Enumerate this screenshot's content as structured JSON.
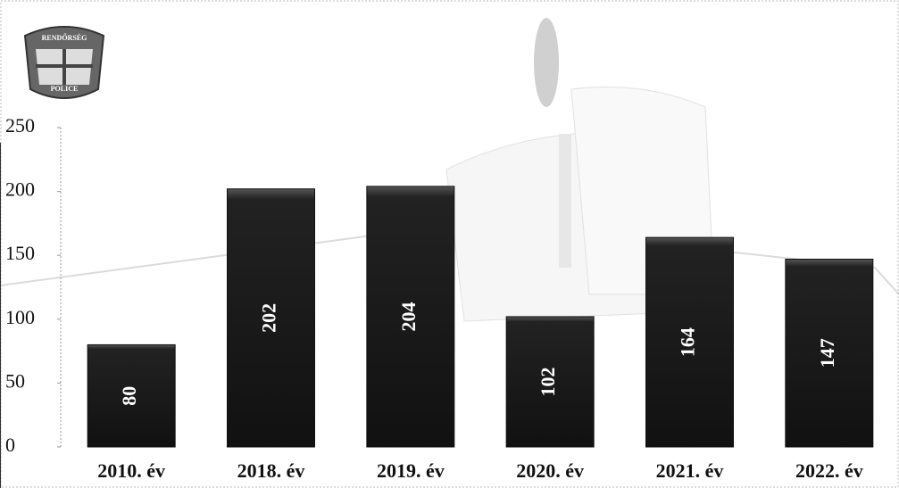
{
  "logo": {
    "top": "RENDŐRSÉG",
    "bottom": "POLICE"
  },
  "chart_data": {
    "type": "bar",
    "categories": [
      "2010. év",
      "2018. év",
      "2019. év",
      "2020. év",
      "2021. év",
      "2022. év"
    ],
    "values": [
      80,
      202,
      204,
      102,
      164,
      147
    ],
    "color": "#111111",
    "ylim": [
      0,
      250
    ],
    "yticks": [
      0,
      50,
      100,
      150,
      200,
      250
    ]
  }
}
